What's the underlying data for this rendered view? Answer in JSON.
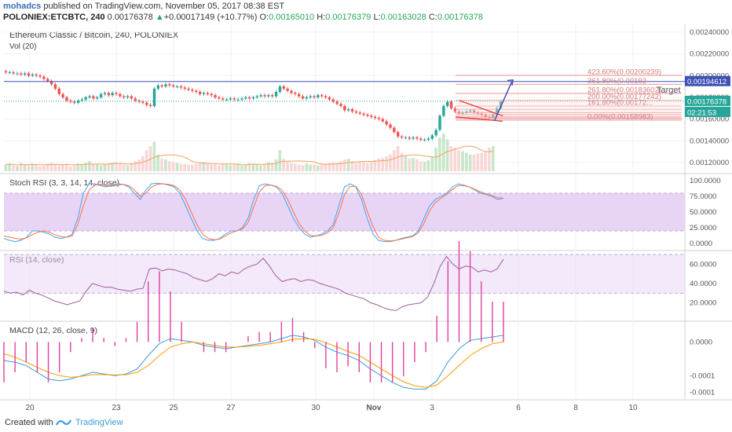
{
  "header": {
    "user": "mohadcs",
    "published_text": "published on TradingView.com, November 05, 2017 08:38 EST",
    "symbol": "POLONIEX:ETCBTC, 240",
    "last": "0.00176378",
    "change": "+0.00017149 (+10.77%)",
    "o_label": "O:",
    "o_value": "0.00165010",
    "h_label": "H:",
    "h_value": "0.00176379",
    "l_label": "L:",
    "l_value": "0.00163028",
    "c_label": "C:",
    "c_value": "0.00176378"
  },
  "footer": {
    "created_with": "Created with",
    "brand": "TradingView"
  },
  "colors": {
    "up": "#26a69a",
    "down": "#ef5350",
    "fib": "#e57373",
    "target": "#3f51b5",
    "stoch_k": "#42a5f5",
    "stoch_d": "#ff7043",
    "rsi": "#9c5d9c",
    "band": "#e7d3f5",
    "macd": "#3b9ad9",
    "signal": "#ff9800",
    "hist": "#e040a0"
  },
  "chart_data": [
    {
      "type": "candlestick",
      "title": "Ethereum Classic / Bitcoin, 240, POLONIEX",
      "volume_label": "Vol (20)",
      "ylim": [
        0.00112,
        0.00245
      ],
      "y_ticks": [
        "0.00240000",
        "0.00220000",
        "0.00200000",
        "0.00180000",
        "0.00160000",
        "0.00140000",
        "0.00120000"
      ],
      "x_ticks": [
        "20",
        "23",
        "25",
        "27",
        "30",
        "Nov",
        "3",
        "6",
        "8",
        "10"
      ],
      "close_series": [
        0.00203,
        0.00203,
        0.00202,
        0.00202,
        0.00201,
        0.00202,
        0.002,
        0.00201,
        0.002,
        0.00199,
        0.00197,
        0.00195,
        0.00192,
        0.00188,
        0.00183,
        0.0018,
        0.00177,
        0.00176,
        0.00175,
        0.00177,
        0.00178,
        0.0018,
        0.00181,
        0.00179,
        0.0018,
        0.00183,
        0.00184,
        0.00182,
        0.00184,
        0.00183,
        0.00181,
        0.0018,
        0.00181,
        0.00179,
        0.00177,
        0.00176,
        0.00175,
        0.00173,
        0.00172,
        0.00188,
        0.00191,
        0.0019,
        0.00192,
        0.00191,
        0.0019,
        0.0019,
        0.00189,
        0.00188,
        0.00187,
        0.00186,
        0.00185,
        0.00183,
        0.00184,
        0.00183,
        0.00182,
        0.0018,
        0.00179,
        0.00178,
        0.00178,
        0.00179,
        0.00178,
        0.00178,
        0.00179,
        0.0018,
        0.00179,
        0.0018,
        0.00181,
        0.00182,
        0.00181,
        0.00182,
        0.00181,
        0.00185,
        0.0019,
        0.00188,
        0.00186,
        0.00184,
        0.00183,
        0.00181,
        0.00179,
        0.0018,
        0.00181,
        0.0018,
        0.00182,
        0.00181,
        0.0018,
        0.00178,
        0.00176,
        0.00174,
        0.00172,
        0.00168,
        0.00169,
        0.00167,
        0.00166,
        0.00165,
        0.00164,
        0.00163,
        0.00162,
        0.00161,
        0.0016,
        0.00158,
        0.00155,
        0.00152,
        0.00148,
        0.00144,
        0.00143,
        0.00143,
        0.00142,
        0.00143,
        0.00142,
        0.00141,
        0.00141,
        0.00142,
        0.00145,
        0.0015,
        0.00163,
        0.00172,
        0.00176,
        0.0017,
        0.00167,
        0.00165,
        0.00166,
        0.00167,
        0.00168,
        0.00166,
        0.00165,
        0.00164,
        0.00162,
        0.00161,
        0.00164,
        0.0017,
        0.00176
      ],
      "volume_series": [
        8,
        9,
        7,
        6,
        10,
        8,
        7,
        9,
        8,
        6,
        7,
        9,
        10,
        8,
        7,
        8,
        9,
        6,
        7,
        9,
        8,
        10,
        12,
        9,
        8,
        7,
        8,
        9,
        10,
        11,
        9,
        8,
        7,
        10,
        12,
        14,
        18,
        25,
        30,
        35,
        20,
        15,
        14,
        12,
        11,
        10,
        9,
        9,
        8,
        8,
        9,
        10,
        11,
        9,
        8,
        8,
        7,
        9,
        8,
        7,
        8,
        9,
        7,
        8,
        10,
        9,
        8,
        7,
        9,
        11,
        10,
        14,
        25,
        15,
        12,
        10,
        9,
        8,
        7,
        9,
        8,
        8,
        7,
        8,
        9,
        10,
        11,
        10,
        12,
        14,
        15,
        12,
        10,
        11,
        12,
        10,
        11,
        13,
        15,
        16,
        18,
        20,
        25,
        30,
        22,
        18,
        15,
        16,
        14,
        12,
        11,
        13,
        18,
        28,
        40,
        45,
        38,
        30,
        28,
        25,
        24,
        22,
        20,
        20,
        21,
        22,
        24,
        28,
        30
      ],
      "fib_levels": [
        {
          "label": "423.60%(0.00200239)",
          "value": 0.00200239
        },
        {
          "label": "361.80%(0.00192"
        },
        {
          "label": "261.80%(0.00183602)",
          "value": 0.00183602
        },
        {
          "label": "200.00%(0.00177242)",
          "value": 0.00177242
        },
        {
          "label": "161.80%(0.00172..."
        },
        {
          "label": "0.00%(0.00158983)",
          "value": 0.00158983
        }
      ],
      "price_tags": [
        {
          "label": "0.00194612",
          "value": 0.00194612
        },
        {
          "label": "0.00176378",
          "value": 0.00176378
        },
        {
          "label": "02:21:53"
        }
      ],
      "annotation": "Target"
    },
    {
      "type": "line",
      "title": "Stoch RSI (3, 3, 14, 14, close)",
      "ylim": [
        -5,
        105
      ],
      "y_ticks": [
        "100.0000",
        "75.0000",
        "50.0000",
        "25.0000",
        "0.0000"
      ],
      "band": [
        20,
        80
      ],
      "series": [
        {
          "values": [
            8,
            5,
            3,
            5,
            10,
            20,
            20,
            18,
            15,
            10,
            8,
            10,
            15,
            40,
            80,
            95,
            95,
            92,
            90,
            92,
            95,
            94,
            90,
            80,
            70,
            85,
            95,
            96,
            95,
            93,
            90,
            80,
            60,
            40,
            20,
            8,
            5,
            5,
            8,
            15,
            20,
            20,
            25,
            40,
            70,
            92,
            95,
            93,
            90,
            80,
            60,
            40,
            25,
            15,
            10,
            12,
            15,
            20,
            30,
            60,
            90,
            95,
            90,
            70,
            40,
            15,
            5,
            3,
            3,
            5,
            8,
            10,
            12,
            20,
            40,
            60,
            70,
            75,
            80,
            90,
            95,
            93,
            90,
            85,
            80,
            78,
            75,
            70,
            72
          ]
        },
        {
          "values": [
            12,
            10,
            8,
            7,
            9,
            14,
            18,
            20,
            18,
            14,
            11,
            10,
            12,
            30,
            60,
            85,
            93,
            94,
            92,
            91,
            93,
            94,
            92,
            85,
            75,
            80,
            90,
            94,
            95,
            94,
            92,
            85,
            70,
            50,
            30,
            15,
            8,
            6,
            7,
            12,
            17,
            20,
            23,
            33,
            58,
            82,
            92,
            93,
            91,
            85,
            70,
            50,
            32,
            20,
            13,
            12,
            13,
            17,
            25,
            48,
            78,
            91,
            91,
            78,
            52,
            27,
            10,
            5,
            4,
            5,
            7,
            9,
            11,
            17,
            32,
            52,
            65,
            72,
            78,
            86,
            92,
            92,
            90,
            86,
            82,
            79,
            76,
            73,
            72
          ]
        }
      ]
    },
    {
      "type": "line",
      "title": "RSI (14, close)",
      "ylim": [
        5,
        70
      ],
      "y_ticks": [
        "60.0000",
        "40.0000",
        "20.0000"
      ],
      "band": [
        30,
        70
      ],
      "series": [
        {
          "values": [
            32,
            30,
            31,
            28,
            33,
            30,
            28,
            25,
            22,
            20,
            18,
            20,
            22,
            32,
            40,
            38,
            36,
            36,
            34,
            33,
            32,
            34,
            35,
            55,
            56,
            53,
            55,
            54,
            52,
            50,
            46,
            44,
            42,
            45,
            50,
            48,
            52,
            50,
            55,
            58,
            60,
            66,
            58,
            48,
            42,
            44,
            45,
            42,
            44,
            43,
            40,
            38,
            36,
            34,
            30,
            28,
            26,
            24,
            20,
            18,
            15,
            13,
            12,
            16,
            18,
            19,
            20,
            26,
            40,
            58,
            68,
            60,
            55,
            58,
            57,
            52,
            54,
            52,
            55,
            65
          ]
        }
      ]
    },
    {
      "type": "line",
      "title": "MACD (12, 26, close, 9)",
      "ylim": [
        -0.00016,
        5e-05
      ],
      "y_ticks": [
        "0.0000",
        "-0.0001",
        "-0.0001"
      ],
      "series": [
        {
          "values": [
            -5.5e-05,
            -6e-05,
            -7e-05,
            -9e-05,
            -0.00011,
            -0.000115,
            -0.00011,
            -0.0001,
            -9e-05,
            -9.5e-05,
            -0.0001,
            -9.5e-05,
            -8e-05,
            -4e-05,
            -5e-06,
            1e-05,
            5e-06,
            0.0,
            -1e-05,
            -1.5e-05,
            -2e-05,
            -1.5e-05,
            -1e-05,
            -5e-06,
            0.0,
            1e-05,
            2e-05,
            1.5e-05,
            5e-06,
            -1.5e-05,
            -3e-05,
            -4e-05,
            -5.5e-05,
            -8e-05,
            -0.0001,
            -0.00012,
            -0.000135,
            -0.00014,
            -0.00014,
            -0.000115,
            -6e-05,
            -2e-05,
            5e-06,
            1e-05,
            1.5e-05,
            2e-05
          ]
        },
        {
          "values": [
            -3.5e-05,
            -4.5e-05,
            -6e-05,
            -7.5e-05,
            -9e-05,
            -0.0001,
            -0.000105,
            -0.000102,
            -9.7e-05,
            -9.7e-05,
            -9.8e-05,
            -9.7e-05,
            -9e-05,
            -7e-05,
            -4e-05,
            -1.5e-05,
            -5e-06,
            -0.0,
            -5e-06,
            -1e-05,
            -1.5e-05,
            -1.5e-05,
            -1.3e-05,
            -1e-05,
            -5e-06,
            0.0,
            8e-06,
            1e-05,
            8e-06,
            -2e-06,
            -1.5e-05,
            -2.8e-05,
            -4e-05,
            -6e-05,
            -8e-05,
            -0.0001,
            -0.000118,
            -0.00013,
            -0.000135,
            -0.000128,
            -0.0001,
            -7e-05,
            -4e-05,
            -2e-05,
            -5e-06,
            0.0
          ]
        }
      ]
    }
  ]
}
